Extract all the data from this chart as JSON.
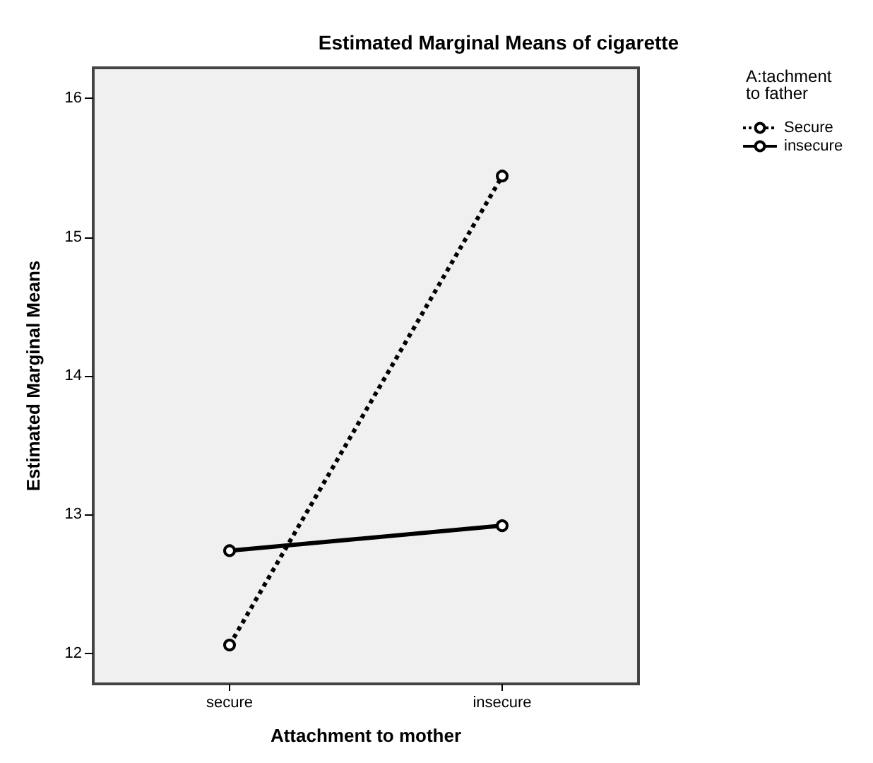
{
  "chart_data": {
    "type": "line",
    "title": "Estimated Marginal Means of cigarette",
    "xlabel": "Attachment to mother",
    "ylabel": "Estimated Marginal Means",
    "legend_title": "A:tachment\nto father",
    "categories": [
      "secure",
      "insecure"
    ],
    "series": [
      {
        "name": "Secure",
        "color": "#000000",
        "values": [
          12.06,
          15.44
        ],
        "line_style": "dotted"
      },
      {
        "name": "insecure",
        "color": "#000000",
        "values": [
          12.74,
          12.92
        ],
        "line_style": "solid"
      }
    ],
    "ylim": [
      11.78,
      16.22
    ],
    "yticks": [
      12,
      13,
      14,
      15,
      16
    ],
    "legend": "top right",
    "marker": "circle",
    "grid": false
  }
}
